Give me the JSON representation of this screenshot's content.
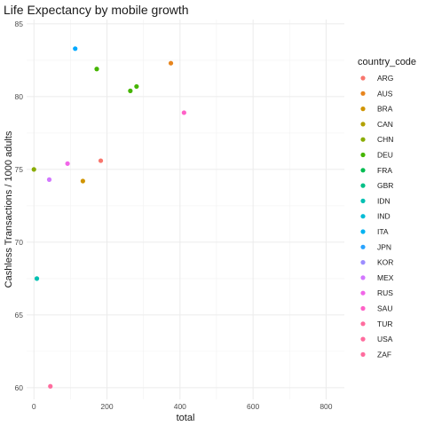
{
  "chart_data": {
    "type": "scatter",
    "title": "Life Expectancy by mobile growth",
    "xlabel": "total",
    "ylabel": "Cashless Transactions / 1000 adults",
    "xlim": [
      -20,
      850
    ],
    "ylim": [
      59.2,
      85.3
    ],
    "xticks": [
      0,
      200,
      400,
      600,
      800
    ],
    "yticks": [
      60,
      65,
      70,
      75,
      80,
      85
    ],
    "grid": true,
    "legend": {
      "title": "country_code",
      "placement": "right",
      "entries": [
        {
          "label": "ARG",
          "color": "#F8766D"
        },
        {
          "label": "AUS",
          "color": "#E7851E"
        },
        {
          "label": "BRA",
          "color": "#D09400"
        },
        {
          "label": "CAN",
          "color": "#B2A100"
        },
        {
          "label": "CHN",
          "color": "#89AC00"
        },
        {
          "label": "DEU",
          "color": "#45B500"
        },
        {
          "label": "FRA",
          "color": "#00BC51"
        },
        {
          "label": "GBR",
          "color": "#00C087"
        },
        {
          "label": "IDN",
          "color": "#00C0B2"
        },
        {
          "label": "IND",
          "color": "#00BCD6"
        },
        {
          "label": "ITA",
          "color": "#00B3F2"
        },
        {
          "label": "JPN",
          "color": "#29A3FF"
        },
        {
          "label": "KOR",
          "color": "#9C8DFF"
        },
        {
          "label": "MEX",
          "color": "#D277FF"
        },
        {
          "label": "RUS",
          "color": "#F166E8"
        },
        {
          "label": "SAU",
          "color": "#FF61C7"
        },
        {
          "label": "TUR",
          "color": "#FF6C9E"
        },
        {
          "label": "USA",
          "color": "#FF6C9E"
        },
        {
          "label": "ZAF",
          "color": "#FF6C9E"
        }
      ]
    },
    "points": [
      {
        "x": 113,
        "y": 83.3,
        "color": "#00A9FF"
      },
      {
        "x": 375,
        "y": 82.3,
        "color": "#E7851E"
      },
      {
        "x": 172,
        "y": 81.9,
        "color": "#45B500"
      },
      {
        "x": 281,
        "y": 80.7,
        "color": "#45B500"
      },
      {
        "x": 264,
        "y": 80.4,
        "color": "#45B500"
      },
      {
        "x": 411,
        "y": 78.9,
        "color": "#FF61C7"
      },
      {
        "x": 183,
        "y": 75.6,
        "color": "#F8766D"
      },
      {
        "x": 92,
        "y": 75.4,
        "color": "#F166E8"
      },
      {
        "x": 0,
        "y": 75.0,
        "color": "#89AC00"
      },
      {
        "x": 42,
        "y": 74.3,
        "color": "#D277FF"
      },
      {
        "x": 134,
        "y": 74.2,
        "color": "#D09400"
      },
      {
        "x": 8,
        "y": 67.5,
        "color": "#00C0B2"
      },
      {
        "x": 45,
        "y": 60.1,
        "color": "#FF6C9E"
      }
    ]
  }
}
